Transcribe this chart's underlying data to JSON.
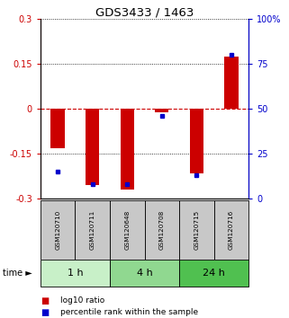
{
  "title": "GDS3433 / 1463",
  "samples": [
    "GSM120710",
    "GSM120711",
    "GSM120648",
    "GSM120708",
    "GSM120715",
    "GSM120716"
  ],
  "log10_ratio": [
    -0.13,
    -0.255,
    -0.27,
    -0.01,
    -0.215,
    0.175
  ],
  "percentile_rank": [
    15,
    8,
    8,
    46,
    13,
    80
  ],
  "groups": [
    {
      "label": "1 h",
      "indices": [
        0,
        1
      ],
      "color": "#c8f0c8"
    },
    {
      "label": "4 h",
      "indices": [
        2,
        3
      ],
      "color": "#90d890"
    },
    {
      "label": "24 h",
      "indices": [
        4,
        5
      ],
      "color": "#50c050"
    }
  ],
  "ylim_left": [
    -0.3,
    0.3
  ],
  "ylim_right": [
    0,
    100
  ],
  "yticks_left": [
    -0.3,
    -0.15,
    0,
    0.15,
    0.3
  ],
  "yticks_right": [
    0,
    25,
    50,
    75,
    100
  ],
  "bar_color_red": "#cc0000",
  "bar_color_blue": "#0000cc",
  "grid_color": "black",
  "zero_line_color": "#cc0000",
  "sample_box_color": "#c8c8c8",
  "time_label": "time",
  "legend_red": "log10 ratio",
  "legend_blue": "percentile rank within the sample",
  "bar_width": 0.4
}
